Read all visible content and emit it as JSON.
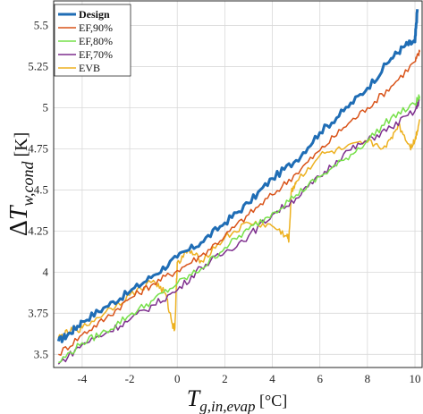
{
  "chart_data": {
    "type": "line",
    "title": "",
    "xlabel": "T_{g,in,evap} [°C]",
    "ylabel": "ΔT_{w,cond} [K]",
    "xlim": [
      -5.2,
      10.3
    ],
    "ylim": [
      3.42,
      5.65
    ],
    "x_ticks": [
      "-4",
      "-2",
      "0",
      "2",
      "4",
      "6",
      "8",
      "10"
    ],
    "y_ticks": [
      "3.5",
      "3.75",
      "4",
      "4.25",
      "4.5",
      "4.75",
      "5",
      "5.25",
      "5.5"
    ],
    "grid": true,
    "legend_position": "top-left",
    "series": [
      {
        "name": "Design",
        "color": "#1f6db5",
        "x": [
          -5.0,
          -4.5,
          -4.0,
          -3.0,
          -2.0,
          -1.0,
          0.0,
          1.0,
          2.0,
          3.0,
          4.0,
          5.0,
          6.0,
          7.0,
          8.0,
          9.0,
          9.6,
          10.0,
          10.1
        ],
        "y": [
          3.58,
          3.63,
          3.7,
          3.79,
          3.88,
          3.98,
          4.09,
          4.18,
          4.3,
          4.42,
          4.57,
          4.68,
          4.85,
          4.98,
          5.12,
          5.3,
          5.38,
          5.4,
          5.6
        ]
      },
      {
        "name": "EF,90%",
        "color": "#d95319",
        "x": [
          -5.0,
          -4.0,
          -3.0,
          -2.0,
          -1.0,
          0.0,
          1.0,
          2.0,
          3.0,
          4.0,
          5.0,
          6.0,
          7.0,
          8.0,
          9.0,
          10.0,
          10.2
        ],
        "y": [
          3.5,
          3.62,
          3.72,
          3.84,
          3.93,
          4.01,
          4.1,
          4.22,
          4.35,
          4.47,
          4.6,
          4.74,
          4.88,
          5.0,
          5.13,
          5.28,
          5.34
        ]
      },
      {
        "name": "EF,80%",
        "color": "#77e04a",
        "x": [
          -5.0,
          -4.0,
          -3.0,
          -2.0,
          -1.0,
          0.0,
          1.0,
          2.0,
          3.0,
          4.0,
          5.0,
          6.0,
          7.0,
          8.0,
          9.0,
          10.0,
          10.2
        ],
        "y": [
          3.45,
          3.57,
          3.64,
          3.74,
          3.83,
          3.93,
          4.02,
          4.15,
          4.26,
          4.36,
          4.47,
          4.58,
          4.68,
          4.8,
          4.94,
          5.02,
          5.07
        ]
      },
      {
        "name": "EF,70%",
        "color": "#7e2f8e",
        "x": [
          -5.0,
          -4.0,
          -3.0,
          -2.0,
          -1.0,
          0.0,
          1.0,
          2.0,
          3.0,
          4.0,
          5.0,
          6.0,
          7.0,
          8.0,
          9.0,
          10.0,
          10.2
        ],
        "y": [
          3.44,
          3.56,
          3.63,
          3.71,
          3.8,
          3.89,
          4.03,
          4.12,
          4.22,
          4.35,
          4.45,
          4.58,
          4.72,
          4.8,
          4.88,
          4.98,
          5.05
        ]
      },
      {
        "name": "EVB",
        "color": "#edb120",
        "x": [
          -5.0,
          -4.5,
          -4.0,
          -3.0,
          -2.0,
          -1.0,
          -0.5,
          -0.2,
          -0.1,
          0.0,
          0.5,
          1.0,
          2.0,
          3.0,
          4.0,
          4.6,
          4.7,
          4.8,
          5.0,
          6.0,
          7.0,
          8.0,
          8.8,
          9.3,
          9.8,
          10.0,
          10.2
        ],
        "y": [
          3.6,
          3.64,
          3.66,
          3.76,
          3.86,
          3.95,
          3.87,
          3.68,
          3.66,
          4.06,
          4.13,
          4.07,
          4.21,
          4.3,
          4.28,
          4.22,
          4.2,
          4.49,
          4.55,
          4.71,
          4.75,
          4.79,
          4.76,
          4.9,
          4.76,
          4.8,
          4.93
        ]
      }
    ]
  }
}
